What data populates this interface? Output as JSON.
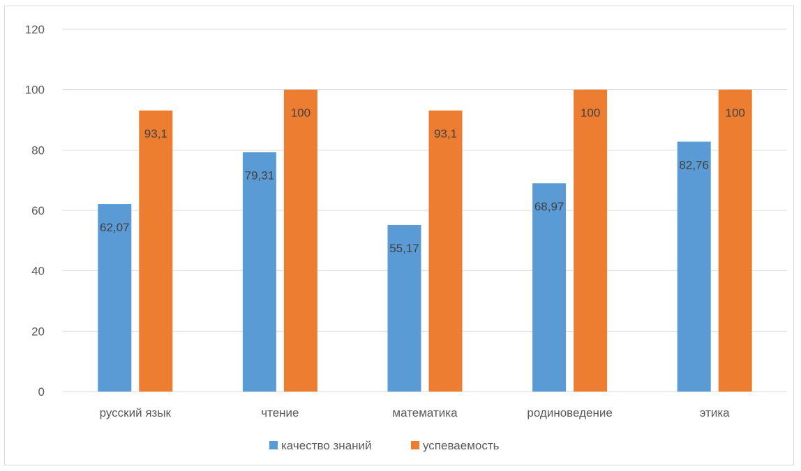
{
  "chart_data": {
    "type": "bar",
    "categories": [
      "русский язык",
      "чтение",
      "математика",
      "родиноведение",
      "этика"
    ],
    "series": [
      {
        "name": "качество знаний",
        "values": [
          62.07,
          79.31,
          55.17,
          68.97,
          82.76
        ],
        "labels": [
          "62,07",
          "79,31",
          "55,17",
          "68,97",
          "82,76"
        ],
        "color": "#5b9bd5"
      },
      {
        "name": "успеваемость",
        "values": [
          93.1,
          100,
          93.1,
          100,
          100
        ],
        "labels": [
          "93,1",
          "100",
          "93,1",
          "100",
          "100"
        ],
        "color": "#ed7d31"
      }
    ],
    "ylim": [
      0,
      120
    ],
    "yticks": [
      0,
      20,
      40,
      60,
      80,
      100,
      120
    ],
    "grid": true,
    "legend": "bottom",
    "title": "",
    "xlabel": "",
    "ylabel": ""
  }
}
